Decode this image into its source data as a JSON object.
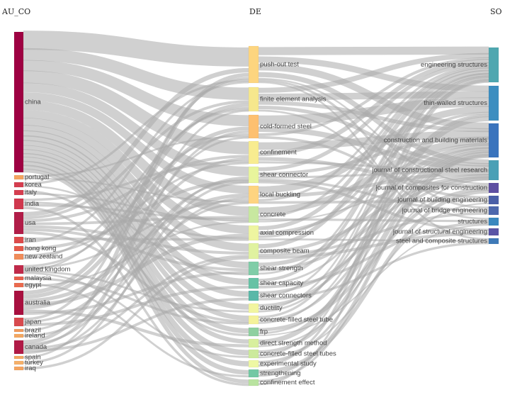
{
  "columns": {
    "left": "AU_CO",
    "middle": "DE",
    "right": "SO"
  },
  "left_nodes": [
    {
      "label": "china",
      "color": "#9e0142"
    },
    {
      "label": "portugal",
      "color": "#f4a460"
    },
    {
      "label": "korea",
      "color": "#d53e4f"
    },
    {
      "label": "italy",
      "color": "#d53e4f"
    },
    {
      "label": "india",
      "color": "#d0384e"
    },
    {
      "label": "usa",
      "color": "#b11d48"
    },
    {
      "label": "iran",
      "color": "#dd4b4b"
    },
    {
      "label": "hong kong",
      "color": "#e55a4a"
    },
    {
      "label": "new zealand",
      "color": "#f08c5a"
    },
    {
      "label": "united kingdom",
      "color": "#c02a4a"
    },
    {
      "label": "malaysia",
      "color": "#e6604c"
    },
    {
      "label": "egypt",
      "color": "#ea6a4e"
    },
    {
      "label": "australia",
      "color": "#a8103f"
    },
    {
      "label": "japan",
      "color": "#d84a4e"
    },
    {
      "label": "brazil",
      "color": "#f09a5c"
    },
    {
      "label": "ireland",
      "color": "#f3a762"
    },
    {
      "label": "canada",
      "color": "#b01a46"
    },
    {
      "label": "spain",
      "color": "#f3a762"
    },
    {
      "label": "turkey",
      "color": "#f5b06a"
    },
    {
      "label": "iraq",
      "color": "#f4a460"
    }
  ],
  "middle_nodes": [
    {
      "label": "push-out test",
      "color": "#fdd57f"
    },
    {
      "label": "finite element analysis",
      "color": "#f6e78d"
    },
    {
      "label": "cold-formed steel",
      "color": "#fdc070"
    },
    {
      "label": "confinement",
      "color": "#f8ec90"
    },
    {
      "label": "shear connector",
      "color": "#e8f59c"
    },
    {
      "label": "local buckling",
      "color": "#fed480"
    },
    {
      "label": "concrete",
      "color": "#c8e8a0"
    },
    {
      "label": "axial compression",
      "color": "#eef5a0"
    },
    {
      "label": "composite beam",
      "color": "#e0f2a0"
    },
    {
      "label": "shear strength",
      "color": "#80cda8"
    },
    {
      "label": "shear capacity",
      "color": "#66c2a5"
    },
    {
      "label": "shear connectors",
      "color": "#5ab8a8"
    },
    {
      "label": "ductility",
      "color": "#f2f5a0"
    },
    {
      "label": "concrete-filled steel tube",
      "color": "#f4f29a"
    },
    {
      "label": "frp",
      "color": "#8fd0a0"
    },
    {
      "label": "direct strength method",
      "color": "#d8ef9e"
    },
    {
      "label": "concrete-filled steel tubes",
      "color": "#ccea9c"
    },
    {
      "label": "experimental study",
      "color": "#eef8a4"
    },
    {
      "label": "strengthening",
      "color": "#74c8a4"
    },
    {
      "label": "confinement effect",
      "color": "#b9e3a0"
    }
  ],
  "right_nodes": [
    {
      "label": "engineering structures",
      "color": "#4fa7b0"
    },
    {
      "label": "thin-walled structures",
      "color": "#3d8ec0"
    },
    {
      "label": "construction and building materials",
      "color": "#3a74bd"
    },
    {
      "label": "journal of constructional steel research",
      "color": "#4aa0b6"
    },
    {
      "label": "journal of composites for construction",
      "color": "#5e4fa2"
    },
    {
      "label": "journal of building engineering",
      "color": "#4a5fa8"
    },
    {
      "label": "journal of bridge engineering",
      "color": "#4d68ad"
    },
    {
      "label": "structures",
      "color": "#3a88bf"
    },
    {
      "label": "journal of structural engineering",
      "color": "#5a55a6"
    },
    {
      "label": "steel and composite structures",
      "color": "#3f7ab8"
    }
  ]
}
